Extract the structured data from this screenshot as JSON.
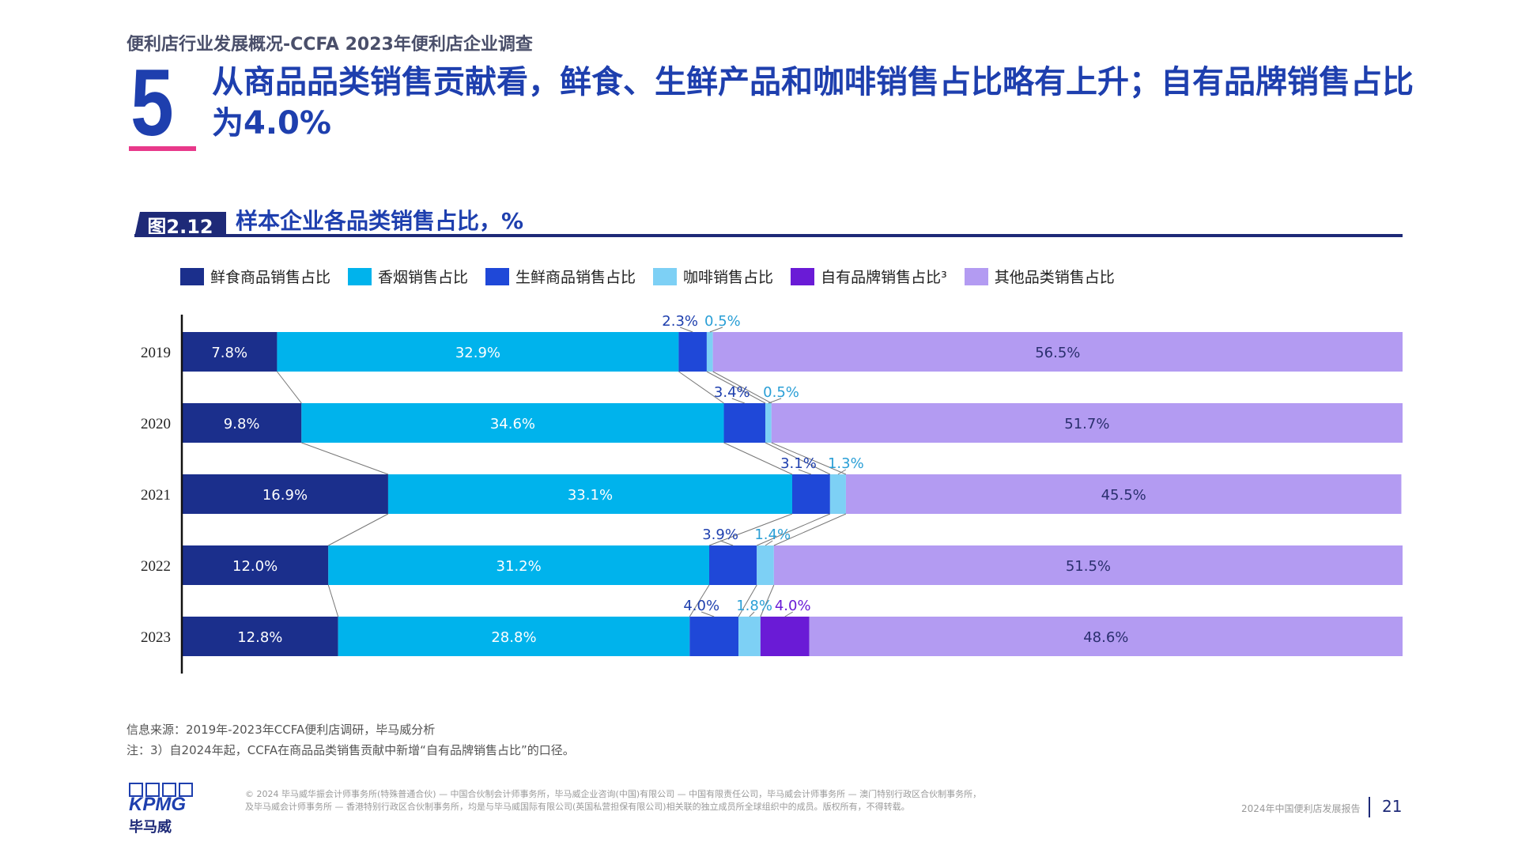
{
  "header": {
    "breadcrumb": "便利店行业发展概况-CCFA 2023年便利店企业调查",
    "section_number": "5",
    "headline": "从商品品类销售贡献看，鲜食、生鲜产品和咖啡销售占比略有上升；自有品牌销售占比为4.0%"
  },
  "figure": {
    "tag": "图2.12",
    "title": "样本企业各品类销售占比，%"
  },
  "legend": [
    {
      "label": "鲜食商品销售占比",
      "color": "#1b2f8c"
    },
    {
      "label": "香烟销售占比",
      "color": "#00b3ec"
    },
    {
      "label": "生鲜商品销售占比",
      "color": "#1f48d8"
    },
    {
      "label": "咖啡销售占比",
      "color": "#7dd0f5"
    },
    {
      "label": "自有品牌销售占比³",
      "color": "#6a1bd6"
    },
    {
      "label": "其他品类销售占比",
      "color": "#b39bf2"
    }
  ],
  "chart_data": {
    "type": "bar",
    "orientation": "horizontal",
    "stacked": true,
    "categories": [
      "2019",
      "2020",
      "2021",
      "2022",
      "2023"
    ],
    "series": [
      {
        "name": "鲜食商品销售占比",
        "values": [
          7.8,
          9.8,
          16.9,
          12.0,
          12.8
        ],
        "labels": [
          "7.8%",
          "9.8%",
          "16.9%",
          "12.0%",
          "12.8%"
        ],
        "color": "#1b2f8c"
      },
      {
        "name": "香烟销售占比",
        "values": [
          32.9,
          34.6,
          33.1,
          31.2,
          28.8
        ],
        "labels": [
          "32.9%",
          "34.6%",
          "33.1%",
          "31.2%",
          "28.8%"
        ],
        "color": "#00b3ec"
      },
      {
        "name": "生鲜商品销售占比",
        "values": [
          2.3,
          3.4,
          3.1,
          3.9,
          4.0
        ],
        "labels": [
          "2.3%",
          "3.4%",
          "3.1%",
          "3.9%",
          "4.0%"
        ],
        "color": "#1f48d8"
      },
      {
        "name": "咖啡销售占比",
        "values": [
          0.5,
          0.5,
          1.3,
          1.4,
          1.8
        ],
        "labels": [
          "0.5%",
          "0.5%",
          "1.3%",
          "1.4%",
          "1.8%"
        ],
        "color": "#7dd0f5"
      },
      {
        "name": "自有品牌销售占比",
        "values": [
          0,
          0,
          0,
          0,
          4.0
        ],
        "labels": [
          "",
          "",
          "",
          "",
          "4.0%"
        ],
        "color": "#6a1bd6"
      },
      {
        "name": "其他品类销售占比",
        "values": [
          56.5,
          51.7,
          45.5,
          51.5,
          48.6
        ],
        "labels": [
          "56.5%",
          "51.7%",
          "45.5%",
          "51.5%",
          "48.6%"
        ],
        "color": "#b39bf2"
      }
    ],
    "xlim": [
      0,
      100
    ],
    "grid": false,
    "legend_position": "top"
  },
  "source": {
    "line1": "信息来源：2019年-2023年CCFA便利店调研，毕马威分析",
    "line2": "注：3）自2024年起，CCFA在商品品类销售贡献中新增“自有品牌销售占比”的口径。"
  },
  "footer": {
    "legal_line1": "© 2024 毕马威华振会计师事务所(特殊普通合伙) — 中国合伙制会计师事务所，毕马威企业咨询(中国)有限公司 — 中国有限责任公司，毕马威会计师事务所 — 澳门特别行政区合伙制事务所，",
    "legal_line2": "及毕马威会计师事务所 — 香港特别行政区合伙制事务所，均是与毕马威国际有限公司(英国私营担保有限公司)相关联的独立成员所全球组织中的成员。版权所有，不得转载。",
    "logo_word": "KPMG",
    "logo_cn": "毕马威",
    "report_name": "2024年中国便利店发展报告",
    "page_number": "21"
  }
}
